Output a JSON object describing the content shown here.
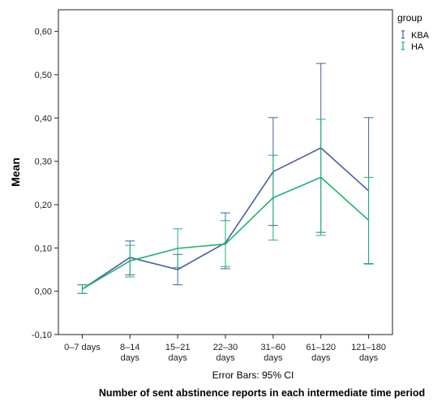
{
  "chart_data": {
    "type": "line",
    "categories": [
      "0-7 days",
      "8-14 days",
      "15-21 days",
      "22-30 days",
      "31-60 days",
      "61-120 days",
      "121-180 days"
    ],
    "category_lines": [
      [
        "0–7 days"
      ],
      [
        "8–14",
        "days"
      ],
      [
        "15–21",
        "days"
      ],
      [
        "22–30",
        "days"
      ],
      [
        "31–60",
        "days"
      ],
      [
        "61–120",
        "days"
      ],
      [
        "121–180",
        "days"
      ]
    ],
    "series": [
      {
        "name": "KBA",
        "color": "#4a5ea8",
        "values": [
          0.005,
          0.078,
          0.05,
          0.112,
          0.276,
          0.331,
          0.232
        ],
        "lower": [
          -0.005,
          0.038,
          0.015,
          0.052,
          0.152,
          0.136,
          0.063
        ],
        "upper": [
          0.015,
          0.116,
          0.085,
          0.181,
          0.401,
          0.526,
          0.401
        ]
      },
      {
        "name": "HA",
        "color": "#1ab56e",
        "values": [
          0.005,
          0.07,
          0.099,
          0.109,
          0.216,
          0.263,
          0.164
        ],
        "lower": [
          -0.005,
          0.033,
          0.055,
          0.057,
          0.118,
          0.129,
          0.064
        ],
        "upper": [
          0.015,
          0.106,
          0.144,
          0.163,
          0.314,
          0.397,
          0.263
        ]
      }
    ],
    "ylabel": "Mean",
    "xlabel": "Number of sent abstinence reports in each intermediate time period",
    "note": "Error Bars: 95% CI",
    "legend_title": "group",
    "legend_position": "top-right",
    "ylim": [
      -0.1,
      0.65
    ],
    "yticks": [
      -0.1,
      0.0,
      0.1,
      0.2,
      0.3,
      0.4,
      0.5,
      0.6
    ],
    "ytick_labels": [
      "-0,10",
      "0,00",
      "0,10",
      "0,20",
      "0,30",
      "0,40",
      "0,50",
      "0,60"
    ],
    "grid": false
  }
}
